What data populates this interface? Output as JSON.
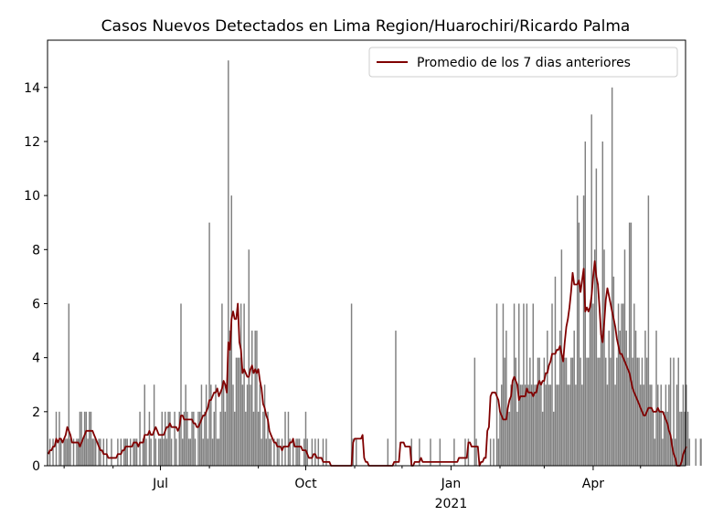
{
  "chart_data": {
    "type": "bar",
    "title": "Casos Nuevos Detectados en Lima Region/Huarochiri/Ricardo Palma",
    "xlabel": "",
    "ylabel": "",
    "x_start": "2020-04-21",
    "x_end": "2021-05-29",
    "ylim": [
      0,
      15.75
    ],
    "y_ticks": [
      0,
      2,
      4,
      6,
      8,
      10,
      12,
      14
    ],
    "x_ticks": [
      {
        "date": "2020-07-01",
        "label": "Jul",
        "sublabel": ""
      },
      {
        "date": "2020-10-01",
        "label": "Oct",
        "sublabel": ""
      },
      {
        "date": "2021-01-01",
        "label": "Jan",
        "sublabel": "2021"
      },
      {
        "date": "2021-04-01",
        "label": "Apr",
        "sublabel": ""
      }
    ],
    "minor_tick_dates": [
      "2020-05-01",
      "2020-06-01",
      "2020-08-01",
      "2020-09-01",
      "2020-11-01",
      "2020-12-01",
      "2021-02-01",
      "2021-03-01",
      "2021-05-01"
    ],
    "grid": false,
    "legend_position": "top-right",
    "series": [
      {
        "name": "",
        "kind": "bar",
        "color": "#808080",
        "values": [
          0,
          1,
          0,
          1,
          0,
          2,
          0,
          2,
          1,
          0,
          1,
          1,
          1,
          6,
          1,
          0,
          1,
          0,
          1,
          1,
          2,
          2,
          1,
          2,
          2,
          1,
          2,
          2,
          1,
          1,
          1,
          0,
          1,
          1,
          0,
          1,
          0,
          1,
          0,
          0,
          1,
          0,
          0,
          0,
          1,
          0,
          1,
          0,
          1,
          1,
          1,
          0,
          1,
          0,
          1,
          1,
          1,
          0,
          2,
          0,
          1,
          3,
          1,
          0,
          2,
          1,
          0,
          3,
          1,
          0,
          1,
          1,
          2,
          1,
          2,
          1,
          2,
          2,
          1,
          0,
          2,
          1,
          0,
          2,
          6,
          1,
          2,
          3,
          2,
          1,
          1,
          2,
          2,
          1,
          0,
          2,
          2,
          3,
          1,
          2,
          3,
          1,
          9,
          3,
          1,
          2,
          3,
          1,
          1,
          2,
          6,
          3,
          2,
          3,
          15,
          5,
          10,
          3,
          2,
          4,
          4,
          4,
          6,
          3,
          6,
          2,
          3,
          8,
          3,
          5,
          2,
          5,
          5,
          2,
          3,
          1,
          2,
          3,
          1,
          2,
          1,
          1,
          0,
          1,
          0,
          1,
          1,
          0,
          1,
          0,
          2,
          0,
          2,
          1,
          0,
          1,
          0,
          1,
          1,
          1,
          0,
          0,
          1,
          2,
          1,
          0,
          0,
          1,
          0,
          1,
          0,
          1,
          0,
          0,
          1,
          0,
          1,
          0,
          0,
          0,
          0,
          0,
          0,
          0,
          0,
          0,
          0,
          0,
          0,
          0,
          0,
          0,
          6,
          1,
          0,
          1,
          0,
          0,
          0,
          0,
          0,
          0,
          0,
          0,
          0,
          0,
          0,
          0,
          0,
          0,
          0,
          0,
          0,
          0,
          0,
          1,
          0,
          0,
          0,
          0,
          5,
          0,
          0,
          0,
          0,
          0,
          0,
          0,
          0,
          0,
          1,
          0,
          0,
          0,
          0,
          1,
          0,
          0,
          0,
          0,
          0,
          0,
          1,
          0,
          0,
          0,
          0,
          0,
          1,
          0,
          0,
          0,
          0,
          0,
          0,
          0,
          0,
          1,
          0,
          0,
          0,
          0,
          0,
          0,
          1,
          0,
          1,
          0,
          0,
          0,
          4,
          1,
          0,
          0,
          0,
          0,
          0,
          0,
          0,
          0,
          1,
          0,
          1,
          0,
          6,
          1,
          2,
          3,
          6,
          4,
          5,
          2,
          2,
          3,
          3,
          6,
          4,
          2,
          6,
          3,
          3,
          6,
          3,
          6,
          3,
          4,
          3,
          6,
          3,
          3,
          4,
          4,
          3,
          2,
          4,
          3,
          5,
          3,
          3,
          6,
          2,
          7,
          3,
          3,
          5,
          8,
          4,
          4,
          4,
          3,
          3,
          4,
          4,
          5,
          3,
          10,
          9,
          4,
          3,
          10,
          12,
          4,
          4,
          6,
          13,
          6,
          8,
          11,
          4,
          4,
          5,
          12,
          8,
          4,
          3,
          5,
          4,
          14,
          7,
          3,
          4,
          6,
          5,
          6,
          6,
          8,
          5,
          4,
          9,
          9,
          4,
          6,
          5,
          4,
          4,
          3,
          4,
          3,
          5,
          4,
          10,
          3,
          3,
          2,
          1,
          5,
          3,
          2,
          3,
          1,
          2,
          3,
          2,
          3,
          4,
          1,
          4,
          1,
          3,
          4,
          2,
          2,
          3,
          2,
          3,
          2,
          1,
          0,
          0,
          0,
          1,
          0,
          0,
          1,
          1,
          2,
          1
        ]
      },
      {
        "name": "Promedio de los 7 dias anteriores",
        "kind": "line",
        "color": "#800000",
        "values": [
          0.43,
          0.57,
          0.57,
          0.71,
          0.71,
          1.0,
          0.86,
          1.0,
          1.0,
          0.86,
          1.0,
          1.14,
          1.43,
          1.29,
          1.14,
          0.86,
          0.86,
          0.86,
          0.86,
          0.86,
          0.71,
          0.86,
          1.0,
          1.14,
          1.29,
          1.29,
          1.29,
          1.29,
          1.29,
          1.14,
          1.0,
          0.86,
          0.71,
          0.57,
          0.57,
          0.43,
          0.43,
          0.43,
          0.29,
          0.29,
          0.29,
          0.29,
          0.29,
          0.29,
          0.43,
          0.43,
          0.43,
          0.57,
          0.57,
          0.71,
          0.71,
          0.71,
          0.71,
          0.71,
          0.86,
          0.86,
          0.86,
          0.71,
          0.86,
          0.86,
          0.86,
          1.14,
          1.14,
          1.14,
          1.29,
          1.14,
          1.14,
          1.29,
          1.43,
          1.29,
          1.14,
          1.14,
          1.14,
          1.14,
          1.29,
          1.43,
          1.43,
          1.57,
          1.43,
          1.43,
          1.43,
          1.43,
          1.29,
          1.43,
          1.86,
          1.86,
          1.71,
          1.71,
          1.71,
          1.71,
          1.71,
          1.71,
          1.57,
          1.57,
          1.43,
          1.43,
          1.57,
          1.71,
          1.86,
          1.86,
          2.0,
          2.14,
          2.43,
          2.43,
          2.57,
          2.71,
          2.71,
          2.86,
          2.57,
          2.71,
          2.86,
          3.14,
          3.0,
          2.71,
          4.57,
          4.29,
          5.43,
          5.71,
          5.43,
          5.43,
          6.0,
          4.57,
          4.29,
          3.43,
          3.57,
          3.43,
          3.29,
          3.29,
          3.57,
          3.71,
          3.43,
          3.57,
          3.43,
          3.57,
          3.14,
          2.86,
          2.29,
          2.14,
          1.86,
          1.71,
          1.29,
          1.14,
          1.0,
          0.86,
          0.86,
          0.71,
          0.71,
          0.71,
          0.57,
          0.71,
          0.71,
          0.71,
          0.71,
          0.86,
          0.86,
          1.0,
          0.71,
          0.71,
          0.71,
          0.71,
          0.71,
          0.57,
          0.57,
          0.57,
          0.43,
          0.29,
          0.29,
          0.29,
          0.43,
          0.43,
          0.29,
          0.29,
          0.29,
          0.29,
          0.14,
          0.14,
          0.14,
          0.14,
          0.14,
          0.0,
          0.0,
          0.0,
          0.0,
          0.0,
          0.0,
          0.0,
          0.0,
          0.0,
          0.0,
          0.0,
          0.0,
          0.0,
          0.0,
          0.86,
          1.0,
          1.0,
          1.0,
          1.0,
          1.0,
          1.14,
          0.29,
          0.14,
          0.14,
          0.0,
          0.0,
          0.0,
          0.0,
          0.0,
          0.0,
          0.0,
          0.0,
          0.0,
          0.0,
          0.0,
          0.0,
          0.0,
          0.0,
          0.0,
          0.0,
          0.14,
          0.14,
          0.14,
          0.14,
          0.86,
          0.86,
          0.86,
          0.71,
          0.71,
          0.71,
          0.71,
          0.0,
          0.0,
          0.14,
          0.14,
          0.14,
          0.14,
          0.29,
          0.14,
          0.14,
          0.14,
          0.14,
          0.14,
          0.14,
          0.14,
          0.14,
          0.14,
          0.14,
          0.14,
          0.14,
          0.14,
          0.14,
          0.14,
          0.14,
          0.14,
          0.14,
          0.14,
          0.14,
          0.14,
          0.14,
          0.14,
          0.29,
          0.29,
          0.29,
          0.29,
          0.29,
          0.29,
          0.86,
          0.86,
          0.71,
          0.71,
          0.71,
          0.71,
          0.71,
          0.0,
          0.14,
          0.14,
          0.29,
          0.29,
          1.29,
          1.43,
          2.57,
          2.71,
          2.71,
          2.71,
          2.57,
          2.43,
          2.0,
          1.86,
          1.71,
          1.71,
          1.71,
          2.14,
          2.43,
          2.57,
          3.14,
          3.29,
          3.14,
          3.0,
          2.43,
          2.57,
          2.57,
          2.57,
          2.57,
          2.86,
          2.71,
          2.71,
          2.71,
          2.57,
          2.71,
          2.71,
          3.0,
          3.14,
          3.0,
          3.14,
          3.14,
          3.43,
          3.43,
          3.71,
          3.86,
          4.14,
          4.14,
          4.14,
          4.29,
          4.29,
          4.43,
          4.14,
          3.86,
          4.57,
          5.14,
          5.43,
          5.86,
          6.43,
          7.14,
          6.71,
          6.71,
          6.71,
          6.86,
          6.43,
          6.86,
          7.29,
          5.71,
          5.86,
          5.71,
          5.86,
          6.29,
          7.0,
          7.57,
          7.0,
          6.71,
          5.86,
          4.86,
          4.57,
          5.29,
          6.14,
          6.57,
          6.29,
          6.0,
          5.71,
          5.43,
          5.14,
          4.71,
          4.43,
          4.14,
          4.14,
          4.0,
          3.86,
          3.71,
          3.57,
          3.43,
          3.14,
          2.86,
          2.71,
          2.57,
          2.43,
          2.29,
          2.14,
          2.0,
          1.86,
          1.86,
          2.0,
          2.14,
          2.14,
          2.14,
          2.0,
          2.0,
          2.0,
          2.14,
          2.0,
          2.0,
          2.0,
          1.86,
          1.71,
          1.57,
          1.29,
          1.14,
          0.71,
          0.43,
          0.29,
          0.0,
          0.0,
          0.0,
          0.14,
          0.43,
          0.57,
          0.71
        ]
      }
    ]
  }
}
